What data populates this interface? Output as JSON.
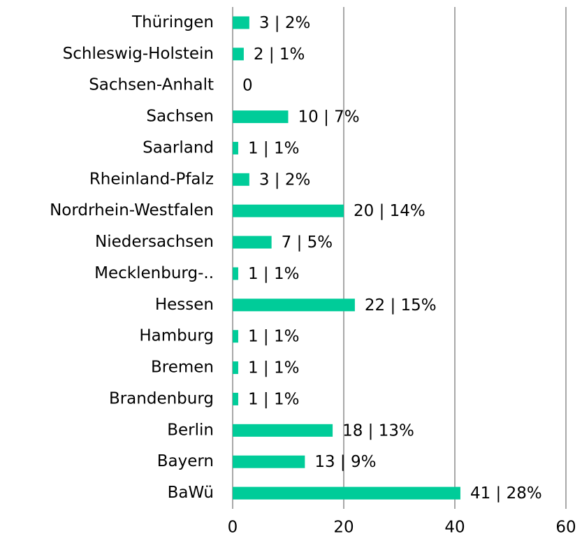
{
  "chart_data": {
    "type": "bar",
    "orientation": "horizontal",
    "categories": [
      "Thüringen",
      "Schleswig-Holstein",
      "Sachsen-Anhalt",
      "Sachsen",
      "Saarland",
      "Rheinland-Pfalz",
      "Nordrhein-Westfalen",
      "Niedersachsen",
      "Mecklenburg-..",
      "Hessen",
      "Hamburg",
      "Bremen",
      "Brandenburg",
      "Berlin",
      "Bayern",
      "BaWü"
    ],
    "values": [
      3,
      2,
      0,
      10,
      1,
      3,
      20,
      7,
      1,
      22,
      1,
      1,
      1,
      18,
      13,
      41
    ],
    "value_labels": [
      "3 | 2%",
      "2 | 1%",
      "0",
      "10 | 7%",
      "1 | 1%",
      "3 | 2%",
      "20 | 14%",
      "7 | 5%",
      "1 | 1%",
      "22 | 15%",
      "1 | 1%",
      "1 | 1%",
      "1 | 1%",
      "18 | 13%",
      "13 | 9%",
      "41 | 28%"
    ],
    "color": "#00cc99",
    "xlim": [
      0,
      60
    ],
    "xticks": [
      0,
      20,
      40,
      60
    ],
    "grid": true
  }
}
